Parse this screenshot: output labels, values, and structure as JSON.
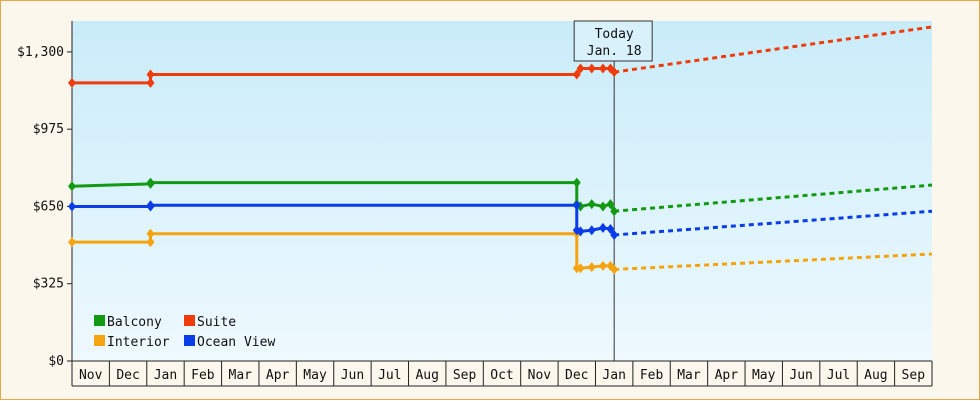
{
  "chart_data": {
    "type": "line",
    "y_ticks": [
      "$0",
      "$325",
      "$650",
      "$975",
      "$1,300"
    ],
    "ylim": [
      0,
      1430
    ],
    "x_months": [
      "Nov",
      "Dec",
      "Jan",
      "Feb",
      "Mar",
      "Apr",
      "May",
      "Jun",
      "Jul",
      "Aug",
      "Sep",
      "Oct",
      "Nov",
      "Dec",
      "Jan",
      "Feb",
      "Mar",
      "Apr",
      "May",
      "Jun",
      "Jul",
      "Aug",
      "Sep"
    ],
    "today": {
      "line1": "Today",
      "line2": "Jan. 18",
      "month_index": 14.5
    },
    "series": [
      {
        "name": "Balcony",
        "color": "#129a12",
        "points": [
          [
            0,
            735
          ],
          [
            2.1,
            745
          ],
          [
            2.1,
            750
          ],
          [
            13.5,
            750
          ],
          [
            13.5,
            660
          ],
          [
            13.6,
            650
          ],
          [
            13.9,
            660
          ],
          [
            14.2,
            650
          ],
          [
            14.4,
            660
          ],
          [
            14.5,
            630
          ]
        ],
        "forecast": [
          [
            14.5,
            630
          ],
          [
            23,
            740
          ]
        ]
      },
      {
        "name": "Suite",
        "color": "#f03c0c",
        "points": [
          [
            0,
            1170
          ],
          [
            2.1,
            1170
          ],
          [
            2.1,
            1205
          ],
          [
            13.5,
            1205
          ],
          [
            13.6,
            1230
          ],
          [
            13.9,
            1230
          ],
          [
            14.2,
            1230
          ],
          [
            14.4,
            1230
          ],
          [
            14.5,
            1215
          ]
        ],
        "forecast": [
          [
            14.5,
            1215
          ],
          [
            23,
            1405
          ]
        ]
      },
      {
        "name": "Interior",
        "color": "#f5a40f",
        "points": [
          [
            0,
            500
          ],
          [
            2.1,
            500
          ],
          [
            2.1,
            535
          ],
          [
            13.5,
            535
          ],
          [
            13.5,
            390
          ],
          [
            13.6,
            390
          ],
          [
            13.9,
            395
          ],
          [
            14.2,
            400
          ],
          [
            14.4,
            400
          ],
          [
            14.5,
            385
          ]
        ],
        "forecast": [
          [
            14.5,
            385
          ],
          [
            23,
            450
          ]
        ]
      },
      {
        "name": "Ocean View",
        "color": "#0a3ce8",
        "points": [
          [
            0,
            650
          ],
          [
            2.1,
            650
          ],
          [
            2.1,
            655
          ],
          [
            13.5,
            655
          ],
          [
            13.5,
            550
          ],
          [
            13.6,
            545
          ],
          [
            13.9,
            550
          ],
          [
            14.2,
            560
          ],
          [
            14.4,
            555
          ],
          [
            14.5,
            530
          ]
        ],
        "forecast": [
          [
            14.5,
            530
          ],
          [
            23,
            630
          ]
        ]
      }
    ],
    "legend_position": "bottom-left"
  }
}
